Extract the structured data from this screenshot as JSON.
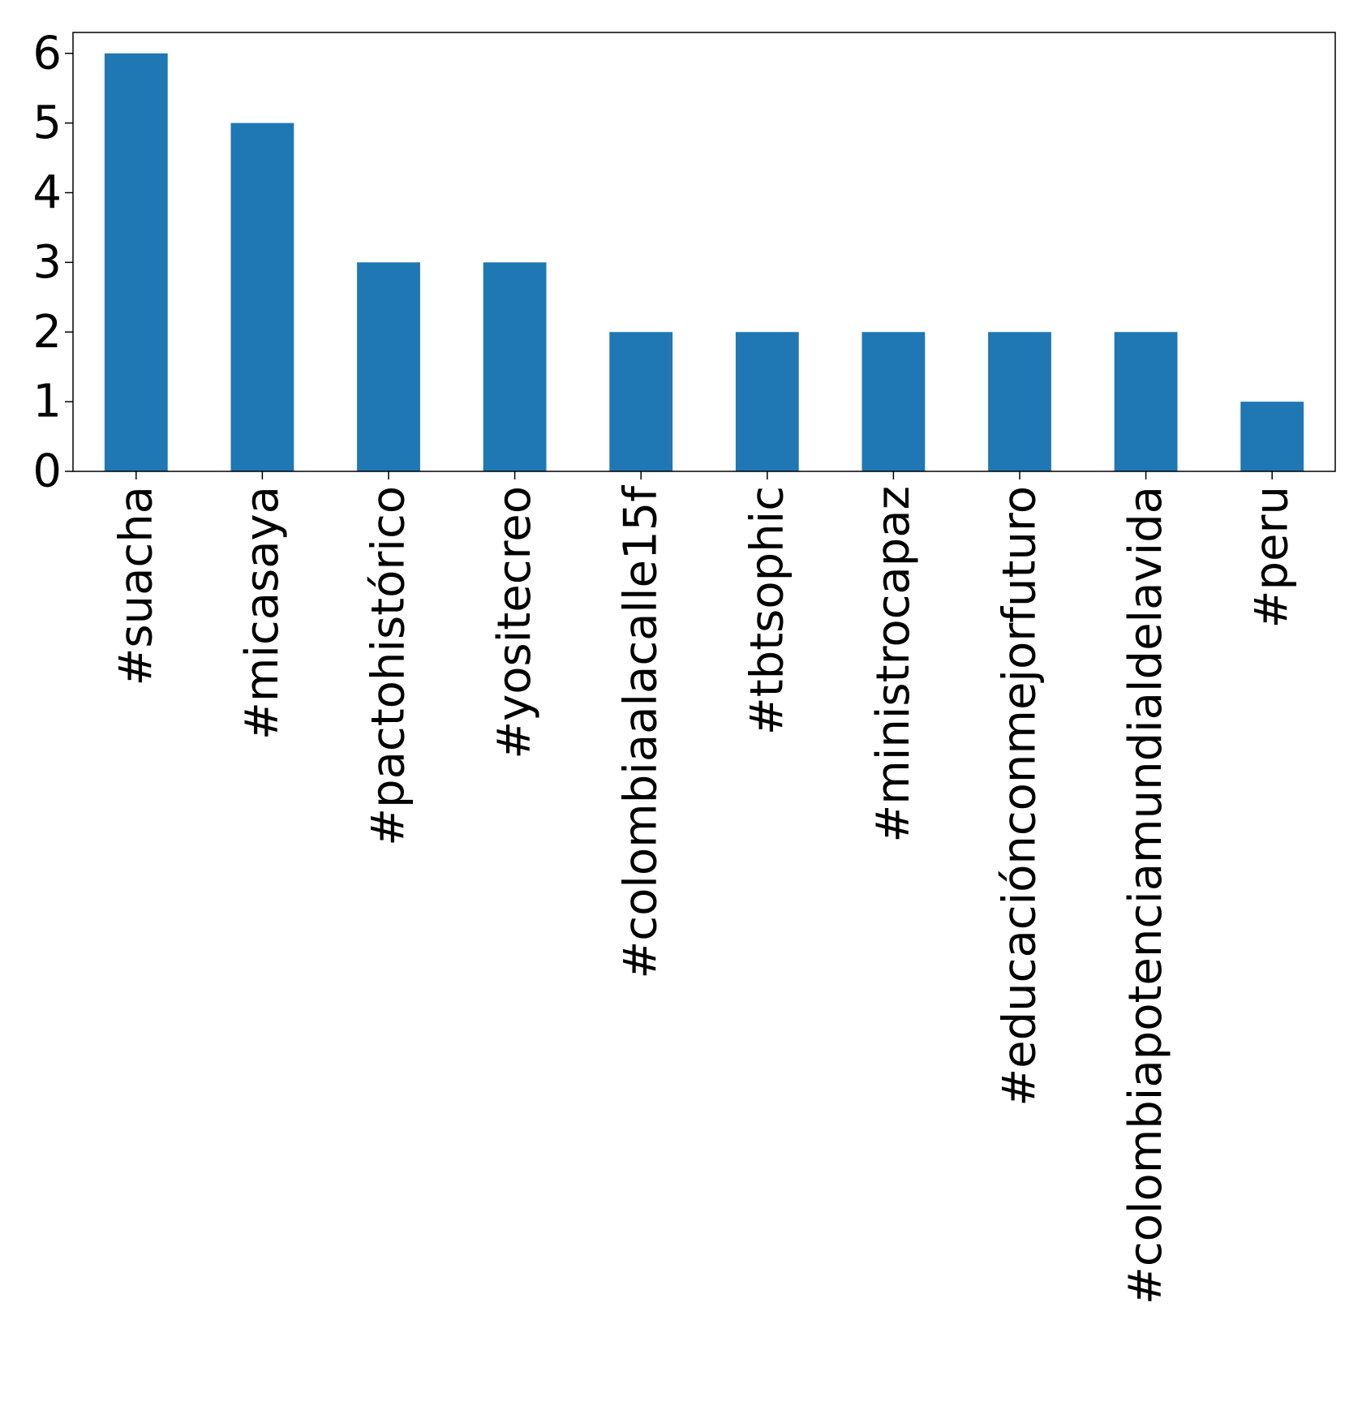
{
  "chart_data": {
    "type": "bar",
    "title": "",
    "xlabel": "",
    "ylabel": "",
    "categories": [
      "#suacha",
      "#micasaya",
      "#pactohistórico",
      "#yositecreo",
      "#colombiaalacalle15f",
      "#tbtsophic",
      "#ministrocapaz",
      "#educaciónconmejorfuturo",
      "#colombiapotenciamundialdelavida",
      "#peru"
    ],
    "values": [
      6,
      5,
      3,
      3,
      2,
      2,
      2,
      2,
      2,
      1
    ],
    "ylim": [
      0,
      6.3
    ],
    "yticks": [
      0,
      1,
      2,
      3,
      4,
      5,
      6
    ],
    "grid": false,
    "legend": "none",
    "bar_color": "#1f77b4"
  }
}
